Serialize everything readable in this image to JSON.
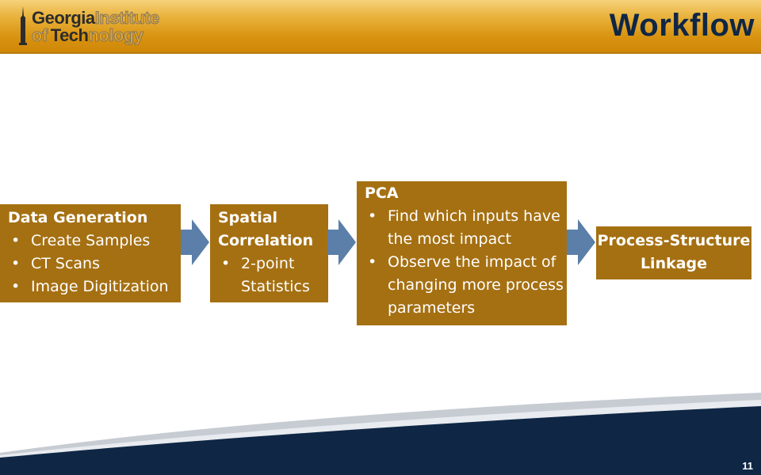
{
  "header": {
    "logo": {
      "line1_strong": "Georgia",
      "line1_outline": "Institute",
      "line2_outline_pre": "of",
      "line2_strong": "Tech",
      "line2_outline": "nology"
    },
    "title": "Workflow"
  },
  "workflow": {
    "step1": {
      "heading": "Data Generation",
      "bullets": [
        "Create Samples",
        "CT Scans",
        "Image Digitization"
      ]
    },
    "step2": {
      "heading_line1": "Spatial",
      "heading_line2": "Correlation",
      "bullets": [
        "2-point Statistics"
      ]
    },
    "step3": {
      "heading": "PCA",
      "bullets": [
        "Find which inputs have the most impact",
        "Observe the impact of changing more process parameters"
      ]
    },
    "step4": {
      "line1": "Process-Structure",
      "line2": "Linkage"
    }
  },
  "footer": {
    "page_number": "11"
  },
  "colors": {
    "box": "#a57012",
    "arrow": "#5b7fa8",
    "header": "#d99310",
    "title": "#0f2745",
    "footer": "#0f2745"
  }
}
